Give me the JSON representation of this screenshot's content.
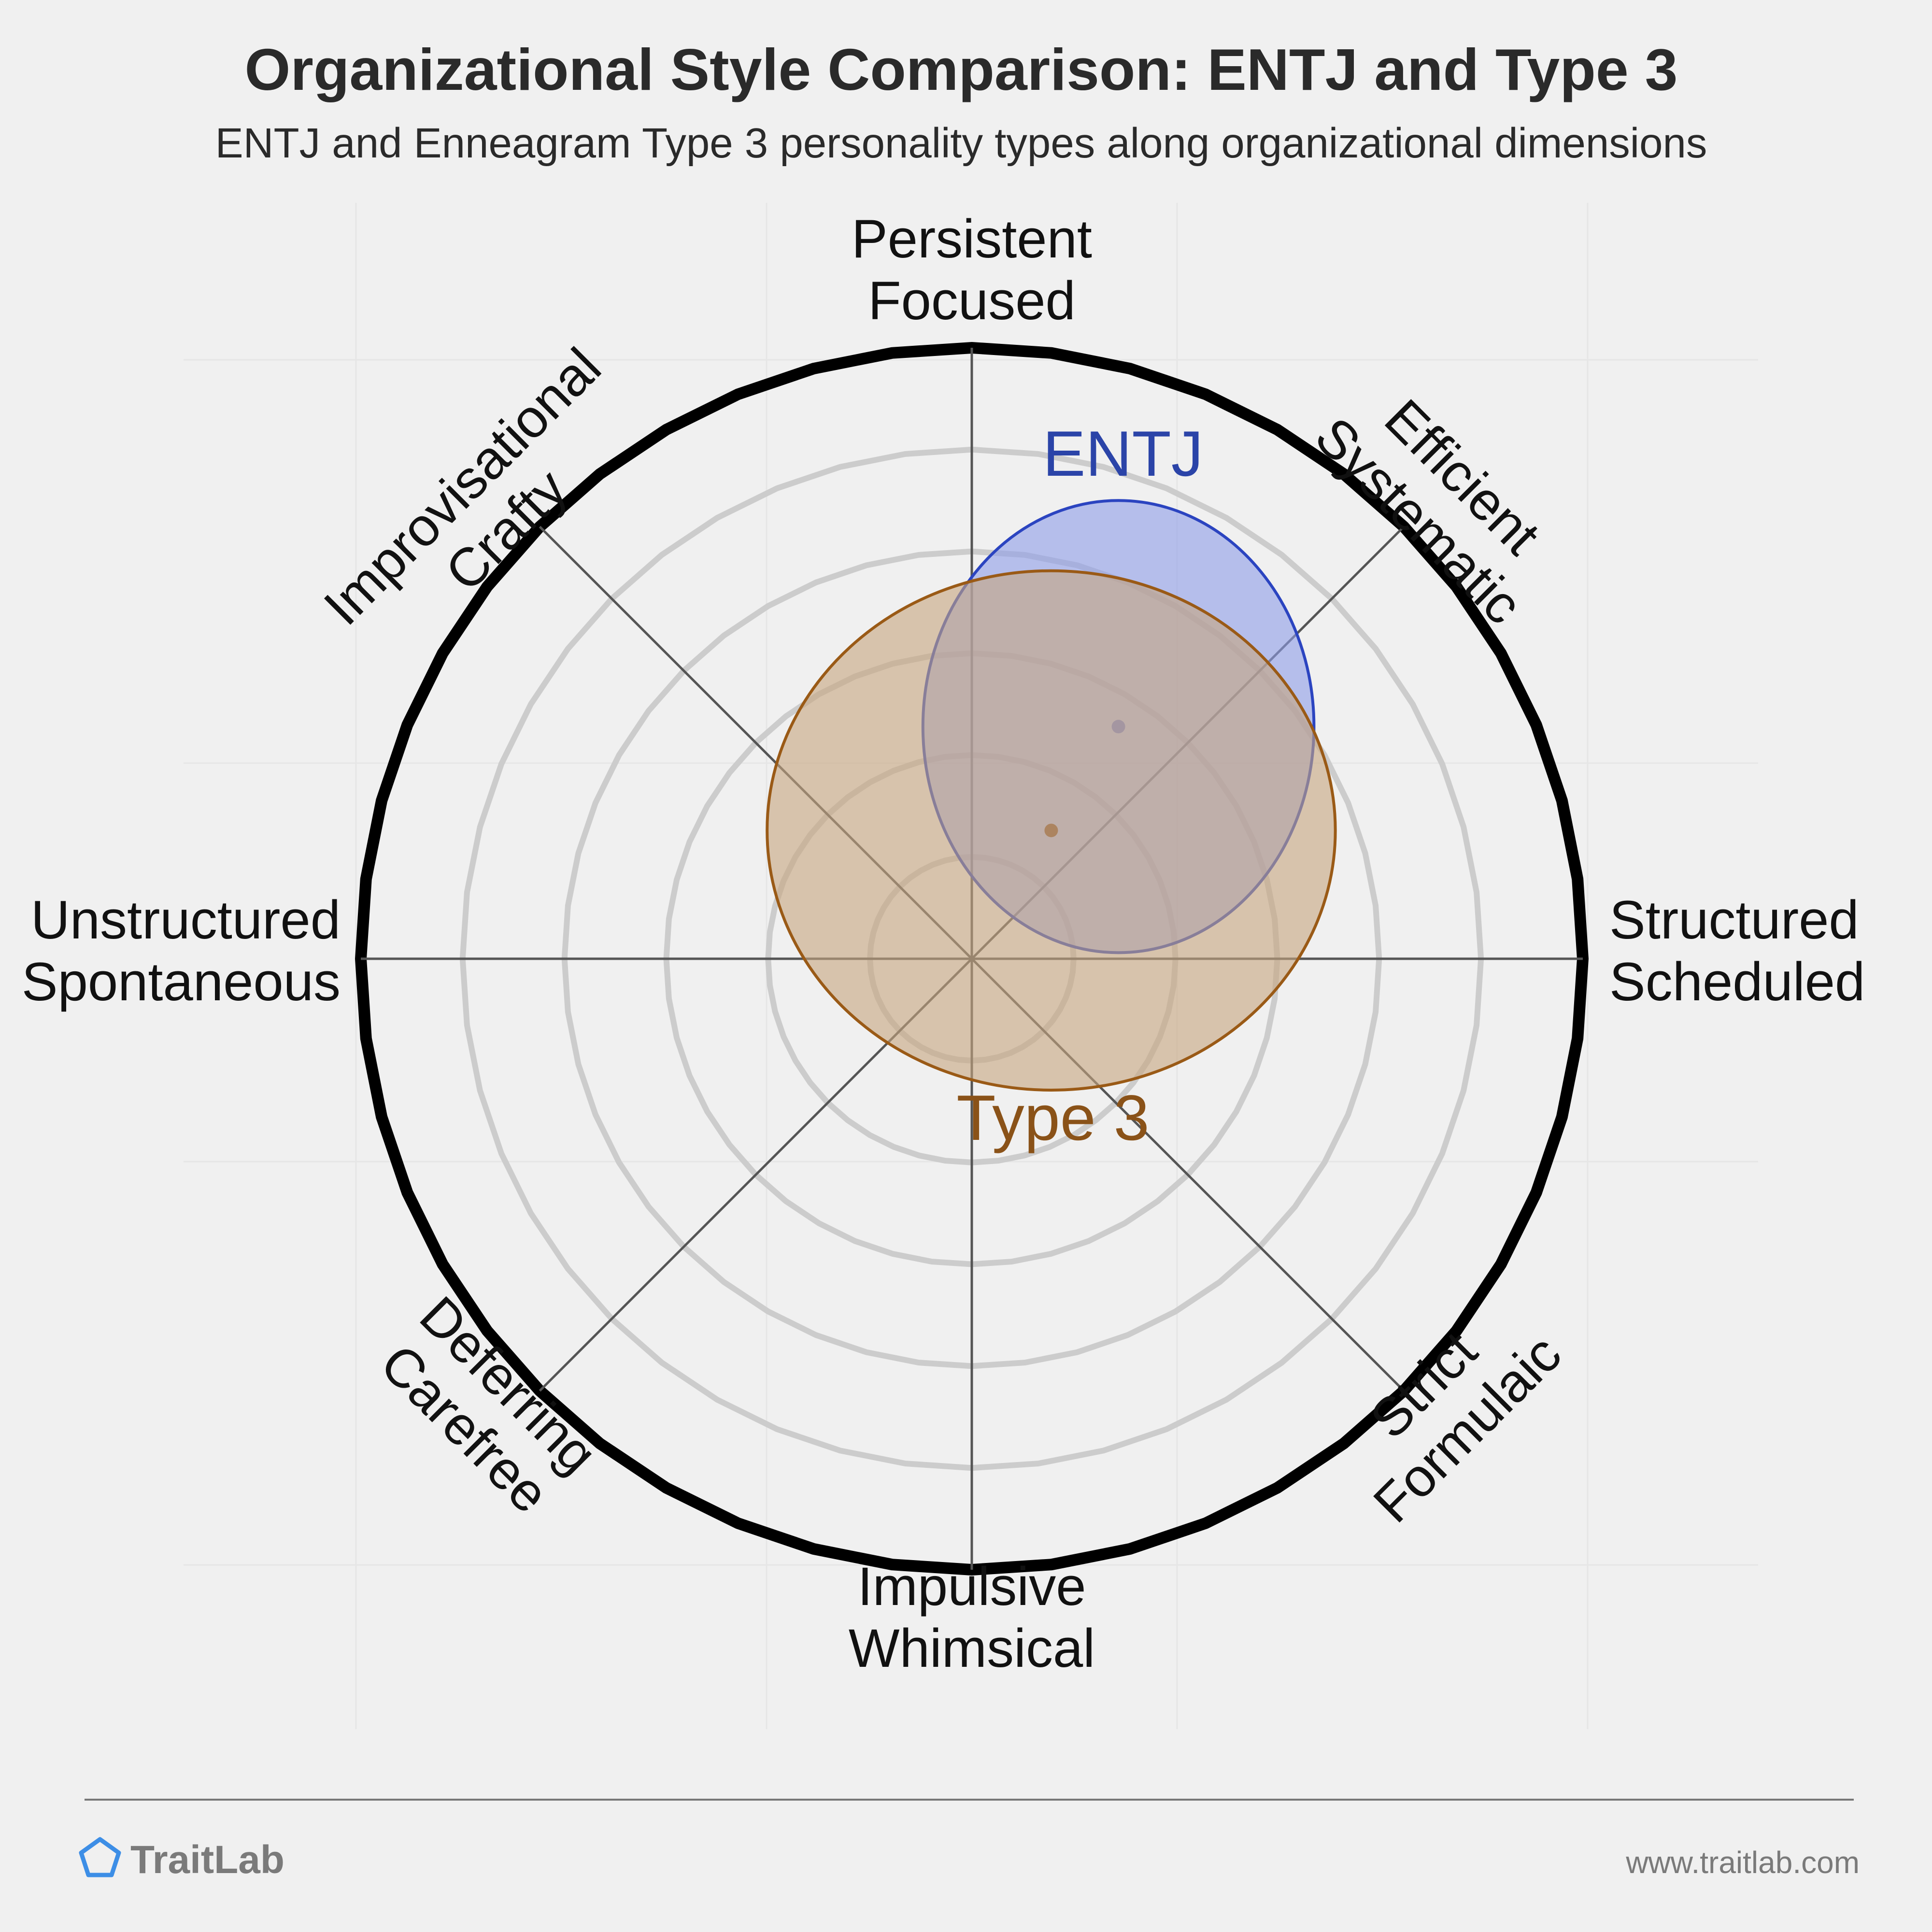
{
  "title": "Organizational Style Comparison: ENTJ and Type 3",
  "subtitle": "ENTJ and Enneagram Type 3 personality types along organizational dimensions",
  "colors": {
    "background": "#f0f0f0",
    "entj_fill": "#8e9de8",
    "entj_stroke": "#2b44c0",
    "entj_label": "#2b44a8",
    "type3_fill": "#c7a57e",
    "type3_stroke": "#9a5a16",
    "type3_label": "#8a5218",
    "ring": "#cccccc",
    "outer_ring": "#000000",
    "axis": "#555555",
    "brand": "#3d8ee6"
  },
  "chart_data": {
    "type": "radar-bubble",
    "axes": [
      {
        "lines": [
          "Persistent",
          "Focused"
        ]
      },
      {
        "lines": [
          "Efficient",
          "Systematic"
        ]
      },
      {
        "lines": [
          "Structured",
          "Scheduled"
        ]
      },
      {
        "lines": [
          "Strict",
          "Formulaic"
        ]
      },
      {
        "lines": [
          "Impulsive",
          "Whimsical"
        ]
      },
      {
        "lines": [
          "Deferring",
          "Carefree"
        ]
      },
      {
        "lines": [
          "Unstructured",
          "Spontaneous"
        ]
      },
      {
        "lines": [
          "Improvisational",
          "Crafty"
        ]
      }
    ],
    "rings": 6,
    "grid": true,
    "series": [
      {
        "name": "ENTJ",
        "center": [
          0.24,
          0.38
        ],
        "radius": [
          0.32,
          0.37
        ]
      },
      {
        "name": "Type 3",
        "center": [
          0.13,
          0.21
        ],
        "radius": [
          0.465,
          0.425
        ]
      }
    ]
  },
  "footer": {
    "brand": "TraitLab",
    "url": "www.traitlab.com"
  }
}
